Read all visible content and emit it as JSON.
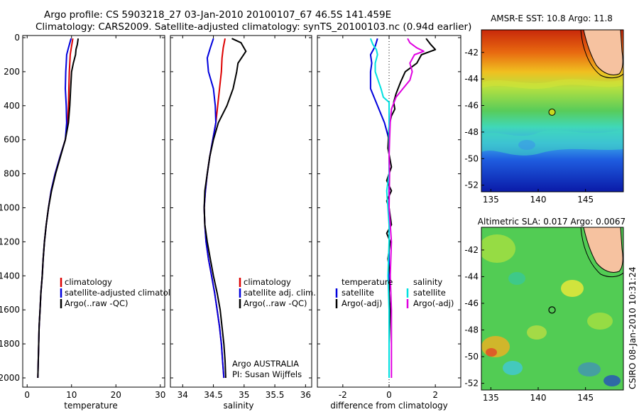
{
  "header": {
    "line1": "Argo profile: CS 5903218_27 03-Jan-2010 20100107_67 46.5S 141.459E",
    "line2": "Climatology: CARS2009. Satellite-adjusted climatology: synTS_20100103.nc (0.94d earlier)"
  },
  "credits": {
    "argo": "Argo AUSTRALIA",
    "pi": "PI: Susan Wijffels",
    "stamp": "CSIRO 08-Jan-2010 10:31:24"
  },
  "colors": {
    "climatology": "#dd0000",
    "satellite": "#0000dd",
    "argo": "#000000",
    "salinity_satellite": "#00e0e0",
    "salinity_argo": "#e000e0"
  },
  "chart_data": [
    {
      "type": "line",
      "id": "temperature",
      "xlabel": "temperature",
      "xlim": [
        -1,
        31
      ],
      "ylim": [
        0,
        2050
      ],
      "y_reversed": true,
      "xticks": [
        0,
        10,
        20,
        30
      ],
      "yticks": [
        0,
        200,
        400,
        600,
        800,
        1000,
        1200,
        1400,
        1600,
        1800,
        2000
      ],
      "legend": [
        "climatology",
        "satellite-adjusted climatology",
        "Argo(..raw -QC)"
      ],
      "series": [
        {
          "name": "climatology",
          "color": "#dd0000",
          "points": [
            [
              10.3,
              5
            ],
            [
              10.0,
              50
            ],
            [
              9.7,
              100
            ],
            [
              9.6,
              150
            ],
            [
              9.5,
              200
            ],
            [
              9.4,
              300
            ],
            [
              9.3,
              400
            ],
            [
              9.1,
              500
            ],
            [
              8.6,
              600
            ],
            [
              7.4,
              700
            ],
            [
              6.3,
              800
            ],
            [
              5.4,
              900
            ],
            [
              4.8,
              1000
            ],
            [
              4.3,
              1100
            ],
            [
              3.9,
              1200
            ],
            [
              3.6,
              1300
            ],
            [
              3.4,
              1400
            ],
            [
              3.1,
              1500
            ],
            [
              2.9,
              1600
            ],
            [
              2.7,
              1700
            ],
            [
              2.6,
              1800
            ],
            [
              2.5,
              1900
            ],
            [
              2.4,
              2000
            ]
          ]
        },
        {
          "name": "satellite-adjusted climatology",
          "color": "#0000dd",
          "points": [
            [
              9.9,
              5
            ],
            [
              9.3,
              60
            ],
            [
              8.9,
              100
            ],
            [
              8.8,
              150
            ],
            [
              8.7,
              200
            ],
            [
              8.6,
              300
            ],
            [
              8.8,
              400
            ],
            [
              8.9,
              500
            ],
            [
              8.6,
              600
            ],
            [
              7.4,
              700
            ],
            [
              6.3,
              800
            ],
            [
              5.4,
              900
            ],
            [
              4.8,
              1000
            ],
            [
              4.3,
              1100
            ],
            [
              3.9,
              1200
            ],
            [
              3.6,
              1300
            ],
            [
              3.4,
              1400
            ],
            [
              3.1,
              1500
            ],
            [
              2.9,
              1600
            ],
            [
              2.7,
              1700
            ],
            [
              2.6,
              1800
            ],
            [
              2.5,
              1900
            ],
            [
              2.4,
              2000
            ]
          ]
        },
        {
          "name": "Argo(..raw -QC)",
          "color": "#000000",
          "points": [
            [
              11.5,
              5
            ],
            [
              11.3,
              40
            ],
            [
              11.0,
              70
            ],
            [
              10.9,
              100
            ],
            [
              10.4,
              150
            ],
            [
              10.0,
              200
            ],
            [
              9.8,
              300
            ],
            [
              9.6,
              400
            ],
            [
              9.3,
              500
            ],
            [
              8.6,
              600
            ],
            [
              7.5,
              700
            ],
            [
              6.4,
              800
            ],
            [
              5.5,
              900
            ],
            [
              4.8,
              1000
            ],
            [
              4.3,
              1100
            ],
            [
              3.9,
              1200
            ],
            [
              3.6,
              1300
            ],
            [
              3.4,
              1400
            ],
            [
              3.1,
              1500
            ],
            [
              2.9,
              1600
            ],
            [
              2.7,
              1700
            ],
            [
              2.6,
              1800
            ],
            [
              2.5,
              1900
            ],
            [
              2.4,
              2000
            ]
          ]
        }
      ]
    },
    {
      "type": "line",
      "id": "salinity",
      "xlabel": "salinity",
      "xlim": [
        33.8,
        36.1
      ],
      "ylim": [
        0,
        2050
      ],
      "y_reversed": true,
      "xticks": [
        34,
        34.5,
        35,
        35.5,
        36
      ],
      "legend": [
        "climatology",
        "satellite adj. clim.",
        "Argo(..raw -QC)"
      ],
      "series": [
        {
          "name": "climatology",
          "color": "#dd0000",
          "points": [
            [
              34.69,
              5
            ],
            [
              34.66,
              60
            ],
            [
              34.64,
              120
            ],
            [
              34.63,
              200
            ],
            [
              34.6,
              300
            ],
            [
              34.57,
              400
            ],
            [
              34.54,
              500
            ],
            [
              34.49,
              600
            ],
            [
              34.44,
              700
            ],
            [
              34.4,
              800
            ],
            [
              34.37,
              900
            ],
            [
              34.35,
              1000
            ],
            [
              34.36,
              1100
            ],
            [
              34.38,
              1200
            ],
            [
              34.42,
              1300
            ],
            [
              34.47,
              1400
            ],
            [
              34.52,
              1500
            ],
            [
              34.56,
              1600
            ],
            [
              34.6,
              1700
            ],
            [
              34.63,
              1800
            ],
            [
              34.65,
              1900
            ],
            [
              34.67,
              2000
            ]
          ]
        },
        {
          "name": "satellite adj. clim.",
          "color": "#0000dd",
          "points": [
            [
              34.5,
              5
            ],
            [
              34.45,
              60
            ],
            [
              34.4,
              120
            ],
            [
              34.42,
              200
            ],
            [
              34.5,
              300
            ],
            [
              34.53,
              400
            ],
            [
              34.54,
              500
            ],
            [
              34.49,
              600
            ],
            [
              34.44,
              700
            ],
            [
              34.4,
              800
            ],
            [
              34.37,
              900
            ],
            [
              34.35,
              1000
            ],
            [
              34.36,
              1100
            ],
            [
              34.38,
              1200
            ],
            [
              34.42,
              1300
            ],
            [
              34.47,
              1400
            ],
            [
              34.52,
              1500
            ],
            [
              34.56,
              1600
            ],
            [
              34.6,
              1700
            ],
            [
              34.63,
              1800
            ],
            [
              34.65,
              1900
            ],
            [
              34.67,
              2000
            ]
          ]
        },
        {
          "name": "Argo(..raw -QC)",
          "color": "#000000",
          "points": [
            [
              34.8,
              5
            ],
            [
              34.95,
              30
            ],
            [
              35.03,
              80
            ],
            [
              34.9,
              150
            ],
            [
              34.88,
              200
            ],
            [
              34.82,
              300
            ],
            [
              34.72,
              400
            ],
            [
              34.58,
              500
            ],
            [
              34.5,
              600
            ],
            [
              34.44,
              700
            ],
            [
              34.4,
              800
            ],
            [
              34.36,
              900
            ],
            [
              34.35,
              1000
            ],
            [
              34.36,
              1100
            ],
            [
              34.4,
              1200
            ],
            [
              34.45,
              1300
            ],
            [
              34.5,
              1400
            ],
            [
              34.56,
              1500
            ],
            [
              34.61,
              1600
            ],
            [
              34.64,
              1700
            ],
            [
              34.67,
              1800
            ],
            [
              34.69,
              1900
            ],
            [
              34.7,
              2000
            ]
          ]
        }
      ]
    },
    {
      "type": "line",
      "id": "difference",
      "xlabel": "difference from climatology",
      "xlim": [
        -3.1,
        3.1
      ],
      "ylim": [
        0,
        2050
      ],
      "y_reversed": true,
      "xticks": [
        -2,
        0,
        2
      ],
      "legend": [
        "temperature",
        "satellite",
        "Argo(-adj)",
        "salinity",
        "satellite",
        "Argo(-adj)"
      ],
      "series": [
        {
          "name": "temperature satellite",
          "color": "#0000dd",
          "points": [
            [
              -0.5,
              5
            ],
            [
              -0.6,
              50
            ],
            [
              -0.8,
              100
            ],
            [
              -0.75,
              150
            ],
            [
              -0.8,
              200
            ],
            [
              -0.8,
              300
            ],
            [
              -0.5,
              400
            ],
            [
              -0.2,
              500
            ],
            [
              0,
              600
            ],
            [
              0,
              700
            ],
            [
              0,
              800
            ],
            [
              0,
              1000
            ],
            [
              0,
              1200
            ],
            [
              0,
              1400
            ],
            [
              0,
              1600
            ],
            [
              0,
              1800
            ],
            [
              0,
              2000
            ]
          ]
        },
        {
          "name": "temperature Argo(-adj)",
          "color": "#000000",
          "points": [
            [
              1.6,
              5
            ],
            [
              1.8,
              40
            ],
            [
              2.0,
              70
            ],
            [
              1.4,
              100
            ],
            [
              1.2,
              150
            ],
            [
              0.7,
              200
            ],
            [
              0.5,
              260
            ],
            [
              0.3,
              330
            ],
            [
              0.2,
              380
            ],
            [
              0.25,
              420
            ],
            [
              0.1,
              460
            ],
            [
              0,
              520
            ],
            [
              -0.05,
              650
            ],
            [
              0.1,
              760
            ],
            [
              -0.1,
              840
            ],
            [
              0.1,
              900
            ],
            [
              -0.1,
              960
            ],
            [
              0,
              1000
            ],
            [
              0.1,
              1100
            ],
            [
              -0.1,
              1150
            ],
            [
              0.05,
              1200
            ],
            [
              -0.05,
              1300
            ],
            [
              0.05,
              1400
            ],
            [
              0,
              1500
            ],
            [
              0.05,
              1600
            ],
            [
              0,
              1800
            ],
            [
              0,
              2000
            ]
          ]
        },
        {
          "name": "salinity satellite",
          "color": "#00e0e0",
          "points": [
            [
              -0.8,
              5
            ],
            [
              -0.7,
              40
            ],
            [
              -0.55,
              70
            ],
            [
              -0.5,
              100
            ],
            [
              -0.6,
              150
            ],
            [
              -0.6,
              200
            ],
            [
              -0.35,
              300
            ],
            [
              -0.25,
              350
            ],
            [
              0,
              380
            ],
            [
              0,
              400
            ],
            [
              0,
              500
            ],
            [
              0,
              700
            ],
            [
              0,
              800
            ],
            [
              -0.1,
              900
            ],
            [
              -0.05,
              1000
            ],
            [
              0,
              1100
            ],
            [
              0,
              1200
            ],
            [
              -0.05,
              1400
            ],
            [
              0,
              1600
            ],
            [
              0,
              1800
            ],
            [
              0,
              2000
            ]
          ]
        },
        {
          "name": "salinity Argo(-adj)",
          "color": "#e000e0",
          "points": [
            [
              0.8,
              5
            ],
            [
              0.9,
              30
            ],
            [
              1.2,
              60
            ],
            [
              1.5,
              80
            ],
            [
              1.1,
              100
            ],
            [
              0.9,
              150
            ],
            [
              1.0,
              200
            ],
            [
              0.9,
              250
            ],
            [
              0.6,
              300
            ],
            [
              0.3,
              350
            ],
            [
              0.1,
              420
            ],
            [
              0.05,
              500
            ],
            [
              0.02,
              600
            ],
            [
              0,
              700
            ],
            [
              0.02,
              800
            ],
            [
              0,
              1000
            ],
            [
              0.1,
              1200
            ],
            [
              0.05,
              1400
            ],
            [
              0.1,
              1600
            ],
            [
              0.1,
              1800
            ],
            [
              0.1,
              2000
            ]
          ]
        }
      ]
    },
    {
      "type": "heatmap",
      "id": "sst-map",
      "title": "AMSR-E SST: 10.8 Argo: 11.8",
      "xlim": [
        134,
        149
      ],
      "ylim": [
        -52.5,
        -40.3
      ],
      "xticks": [
        135,
        140,
        145
      ],
      "yticks": [
        -42,
        -44,
        -46,
        -48,
        -50,
        -52
      ],
      "float_position": {
        "lon": 141.46,
        "lat": -46.5
      }
    },
    {
      "type": "heatmap",
      "id": "sla-map",
      "title": "Altimetric SLA: 0.017 Argo: 0.0067",
      "xlim": [
        134,
        149
      ],
      "ylim": [
        -52.5,
        -40.3
      ],
      "xticks": [
        135,
        140,
        145
      ],
      "yticks": [
        -42,
        -44,
        -46,
        -48,
        -50,
        -52
      ],
      "float_position": {
        "lon": 141.46,
        "lat": -46.5
      }
    }
  ]
}
